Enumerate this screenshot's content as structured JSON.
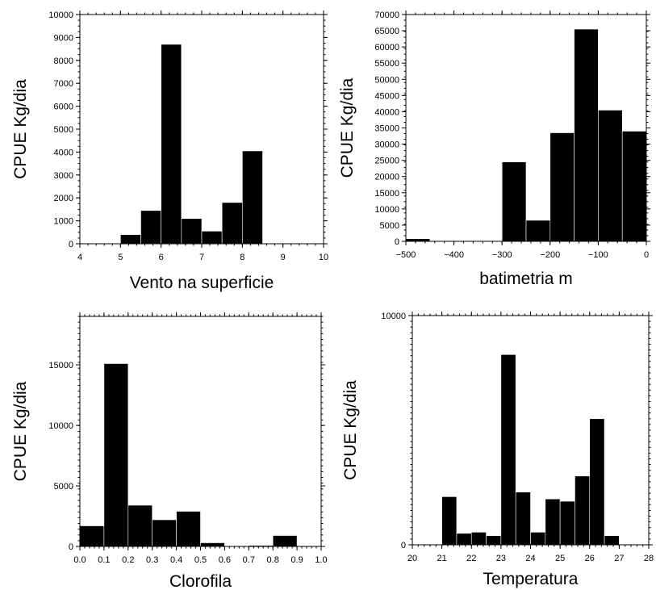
{
  "chart_data": [
    {
      "type": "bar",
      "histogram": true,
      "title": "",
      "xlabel": "Vento na superficie",
      "ylabel": "CPUE Kg/dia",
      "xlim": [
        4,
        10
      ],
      "ylim": [
        0,
        10000
      ],
      "x_ticks": [
        4,
        5,
        6,
        7,
        8,
        9,
        10
      ],
      "x_tick_labels": [
        "4",
        "5",
        "6",
        "7",
        "8",
        "9",
        "10"
      ],
      "y_ticks": [
        0,
        1000,
        2000,
        3000,
        4000,
        5000,
        6000,
        7000,
        8000,
        9000,
        10000
      ],
      "y_tick_labels": [
        "0",
        "1000",
        "2000",
        "3000",
        "4000",
        "5000",
        "6000",
        "7000",
        "8000",
        "9000",
        "10000"
      ],
      "bin_edges": [
        5.0,
        5.5,
        6.0,
        6.5,
        7.0,
        7.5,
        8.0,
        8.5
      ],
      "values": [
        400,
        1450,
        8700,
        1100,
        550,
        1800,
        4050
      ],
      "color": "#000000"
    },
    {
      "type": "bar",
      "histogram": true,
      "title": "",
      "xlabel": "batimetria m",
      "ylabel": "CPUE Kg/dia",
      "xlim": [
        -500,
        0
      ],
      "ylim": [
        0,
        70000
      ],
      "x_ticks": [
        -500,
        -400,
        -300,
        -200,
        -100,
        0
      ],
      "x_tick_labels": [
        "−500",
        "−400",
        "−300",
        "−200",
        "−100",
        "0"
      ],
      "y_ticks": [
        0,
        5000,
        10000,
        15000,
        20000,
        25000,
        30000,
        35000,
        40000,
        45000,
        50000,
        55000,
        60000,
        65000,
        70000
      ],
      "y_tick_labels": [
        "0",
        "5000",
        "10000",
        "15000",
        "20000",
        "25000",
        "30000",
        "35000",
        "40000",
        "45000",
        "50000",
        "55000",
        "60000",
        "65000",
        "70000"
      ],
      "bin_edges": [
        -500,
        -450,
        -400,
        -350,
        -300,
        -250,
        -200,
        -150,
        -100,
        -50,
        0
      ],
      "values": [
        800,
        0,
        0,
        0,
        24500,
        6500,
        33500,
        65500,
        40500,
        34000
      ],
      "color": "#000000"
    },
    {
      "type": "bar",
      "histogram": true,
      "title": "",
      "xlabel": "Clorofila",
      "ylabel": "CPUE Kg/dia",
      "xlim": [
        0,
        1
      ],
      "ylim": [
        0,
        19000
      ],
      "x_ticks": [
        0,
        0.1,
        0.2,
        0.3,
        0.4,
        0.5,
        0.6,
        0.7,
        0.8,
        0.9,
        1.0
      ],
      "x_tick_labels": [
        "0.0",
        "0.1",
        "0.2",
        "0.3",
        "0.4",
        "0.5",
        "0.6",
        "0.7",
        "0.8",
        "0.9",
        "1.0"
      ],
      "y_ticks": [
        0,
        5000,
        10000,
        15000
      ],
      "y_tick_labels": [
        "0",
        "5000",
        "10000",
        "15000"
      ],
      "bin_edges": [
        0.0,
        0.1,
        0.2,
        0.3,
        0.4,
        0.5,
        0.6,
        0.7,
        0.8,
        0.9
      ],
      "values": [
        1700,
        15100,
        3400,
        2200,
        2900,
        300,
        50,
        80,
        900
      ],
      "color": "#000000"
    },
    {
      "type": "bar",
      "histogram": true,
      "title": "",
      "xlabel": "Temperatura",
      "ylabel": "CPUE Kg/dia",
      "xlim": [
        20,
        28
      ],
      "ylim": [
        0,
        10000
      ],
      "x_ticks": [
        20,
        21,
        22,
        23,
        24,
        25,
        26,
        27,
        28
      ],
      "x_tick_labels": [
        "20",
        "21",
        "22",
        "23",
        "24",
        "25",
        "26",
        "27",
        "28"
      ],
      "y_ticks": [
        0,
        10000
      ],
      "y_tick_labels": [
        "0",
        "10000"
      ],
      "bin_edges": [
        21.0,
        21.5,
        22.0,
        22.5,
        23.0,
        23.5,
        24.0,
        24.5,
        25.0,
        25.5,
        26.0,
        26.5,
        27.0
      ],
      "values": [
        2100,
        500,
        550,
        400,
        8300,
        2300,
        550,
        2000,
        1900,
        3000,
        5500,
        400
      ],
      "color": "#000000"
    }
  ]
}
